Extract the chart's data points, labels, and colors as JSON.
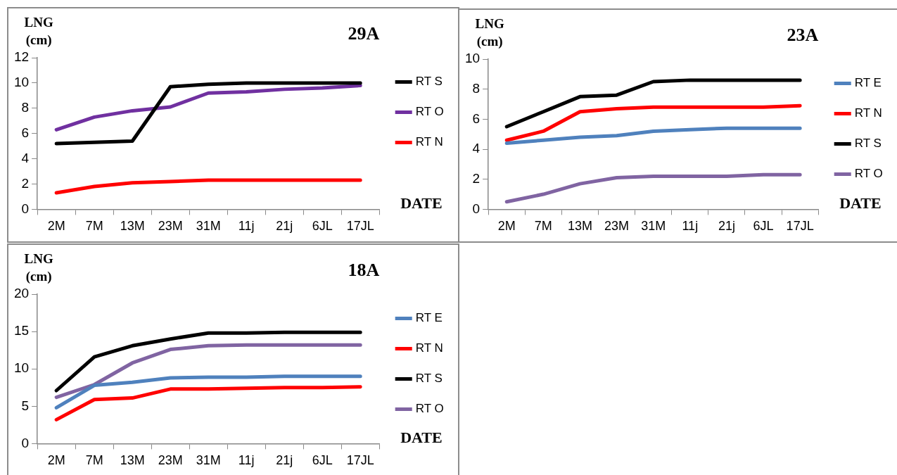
{
  "chart_data": [
    {
      "type": "line",
      "title": "29A",
      "xlabel": "DATE",
      "ylabel": "LNG (cm)",
      "categories": [
        "2M",
        "7M",
        "13M",
        "23M",
        "31M",
        "11j",
        "21j",
        "6JL",
        "17JL"
      ],
      "ylim": [
        0,
        12
      ],
      "yticks": [
        0,
        2,
        4,
        6,
        8,
        10,
        12
      ],
      "grid": false,
      "legend": "right",
      "marker": "none",
      "line_style": "solid",
      "series": [
        {
          "name": "RT S",
          "color": "#000000",
          "values": [
            5.2,
            5.3,
            5.4,
            9.7,
            9.9,
            10,
            10,
            10,
            10
          ]
        },
        {
          "name": "RT O",
          "color": "#7030a0",
          "values": [
            6.3,
            7.3,
            7.8,
            8.1,
            9.2,
            9.3,
            9.5,
            9.6,
            9.8
          ]
        },
        {
          "name": "RT N",
          "color": "#ff0000",
          "values": [
            1.3,
            1.8,
            2.1,
            2.2,
            2.3,
            2.3,
            2.3,
            2.3,
            2.3
          ]
        }
      ]
    },
    {
      "type": "line",
      "title": "23A",
      "xlabel": "DATE",
      "ylabel": "LNG (cm)",
      "categories": [
        "2M",
        "7M",
        "13M",
        "23M",
        "31M",
        "11j",
        "21j",
        "6JL",
        "17JL"
      ],
      "ylim": [
        0,
        10
      ],
      "yticks": [
        0,
        2,
        4,
        6,
        8,
        10
      ],
      "grid": false,
      "legend": "right",
      "marker": "none",
      "line_style": "solid",
      "series": [
        {
          "name": "RT E",
          "color": "#4f81bd",
          "values": [
            4.4,
            4.6,
            4.8,
            4.9,
            5.2,
            5.3,
            5.4,
            5.4,
            5.4
          ]
        },
        {
          "name": "RT N",
          "color": "#ff0000",
          "values": [
            4.6,
            5.2,
            6.5,
            6.7,
            6.8,
            6.8,
            6.8,
            6.8,
            6.9
          ]
        },
        {
          "name": "RT S",
          "color": "#000000",
          "values": [
            5.5,
            6.5,
            7.5,
            7.6,
            8.5,
            8.6,
            8.6,
            8.6,
            8.6
          ]
        },
        {
          "name": "RT O",
          "color": "#8064a2",
          "values": [
            0.5,
            1.0,
            1.7,
            2.1,
            2.2,
            2.2,
            2.2,
            2.3,
            2.3
          ]
        }
      ]
    },
    {
      "type": "line",
      "title": "18A",
      "xlabel": "DATE",
      "ylabel": "LNG (cm)",
      "categories": [
        "2M",
        "7M",
        "13M",
        "23M",
        "31M",
        "11j",
        "21j",
        "6JL",
        "17JL"
      ],
      "ylim": [
        0,
        20
      ],
      "yticks": [
        0,
        5,
        10,
        15,
        20
      ],
      "grid": false,
      "legend": "right",
      "marker": "none",
      "line_style": "solid",
      "series": [
        {
          "name": "RT E",
          "color": "#4f81bd",
          "values": [
            4.8,
            7.8,
            8.2,
            8.8,
            8.9,
            8.9,
            9,
            9,
            9
          ]
        },
        {
          "name": "RT N",
          "color": "#ff0000",
          "values": [
            3.2,
            5.9,
            6.1,
            7.3,
            7.3,
            7.4,
            7.5,
            7.5,
            7.6
          ]
        },
        {
          "name": "RT S",
          "color": "#000000",
          "values": [
            7.1,
            11.6,
            13.1,
            14,
            14.8,
            14.8,
            14.9,
            14.9,
            14.9
          ]
        },
        {
          "name": "RT O",
          "color": "#8064a2",
          "values": [
            6.2,
            7.9,
            10.8,
            12.6,
            13.1,
            13.2,
            13.2,
            13.2,
            13.2
          ]
        }
      ]
    }
  ]
}
